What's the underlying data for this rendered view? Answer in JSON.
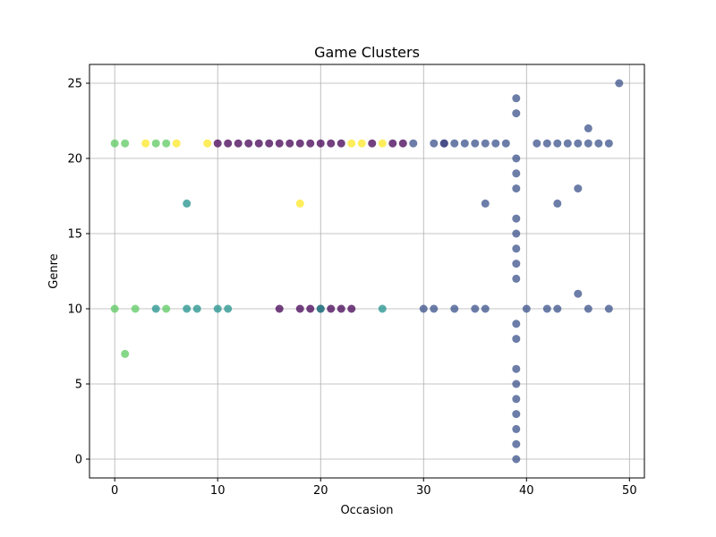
{
  "chart_data": {
    "type": "scatter",
    "title": "Game Clusters",
    "xlabel": "Occasion",
    "ylabel": "Genre",
    "xlim": [
      -2.45,
      51.45
    ],
    "ylim": [
      -1.25,
      26.25
    ],
    "xticks": [
      0,
      10,
      20,
      30,
      40,
      50
    ],
    "yticks": [
      0,
      5,
      10,
      15,
      20,
      25
    ],
    "grid": true,
    "legend": "none",
    "colormap": "viridis",
    "point_opacity": 0.75,
    "series": [
      {
        "cluster_color": "#440154",
        "points": [
          [
            10,
            21
          ],
          [
            11,
            21
          ],
          [
            12,
            21
          ],
          [
            13,
            21
          ],
          [
            14,
            21
          ],
          [
            15,
            21
          ],
          [
            16,
            21
          ],
          [
            17,
            21
          ],
          [
            18,
            21
          ],
          [
            19,
            21
          ],
          [
            20,
            21
          ],
          [
            21,
            21
          ],
          [
            22,
            21
          ],
          [
            25,
            21
          ],
          [
            27,
            21
          ],
          [
            28,
            21
          ],
          [
            32,
            21
          ],
          [
            16,
            10
          ],
          [
            18,
            10
          ],
          [
            19,
            10
          ],
          [
            20,
            10
          ],
          [
            21,
            10
          ],
          [
            22,
            10
          ],
          [
            23,
            10
          ]
        ]
      },
      {
        "cluster_color": "#3b528b",
        "points": [
          [
            29,
            21
          ],
          [
            31,
            21
          ],
          [
            32,
            21
          ],
          [
            33,
            21
          ],
          [
            34,
            21
          ],
          [
            35,
            21
          ],
          [
            36,
            21
          ],
          [
            37,
            21
          ],
          [
            38,
            21
          ],
          [
            41,
            21
          ],
          [
            42,
            21
          ],
          [
            43,
            21
          ],
          [
            44,
            21
          ],
          [
            45,
            21
          ],
          [
            46,
            21
          ],
          [
            47,
            21
          ],
          [
            48,
            21
          ],
          [
            46,
            22
          ],
          [
            49,
            25
          ],
          [
            30,
            10
          ],
          [
            31,
            10
          ],
          [
            33,
            10
          ],
          [
            35,
            10
          ],
          [
            36,
            10
          ],
          [
            40,
            10
          ],
          [
            42,
            10
          ],
          [
            43,
            10
          ],
          [
            46,
            10
          ],
          [
            48,
            10
          ],
          [
            45,
            11
          ],
          [
            36,
            17
          ],
          [
            43,
            17
          ],
          [
            45,
            18
          ],
          [
            39,
            0
          ],
          [
            39,
            1
          ],
          [
            39,
            2
          ],
          [
            39,
            3
          ],
          [
            39,
            4
          ],
          [
            39,
            5
          ],
          [
            39,
            6
          ],
          [
            39,
            8
          ],
          [
            39,
            9
          ],
          [
            39,
            12
          ],
          [
            39,
            13
          ],
          [
            39,
            14
          ],
          [
            39,
            15
          ],
          [
            39,
            16
          ],
          [
            39,
            18
          ],
          [
            39,
            19
          ],
          [
            39,
            20
          ],
          [
            39,
            23
          ],
          [
            39,
            24
          ]
        ]
      },
      {
        "cluster_color": "#21918c",
        "points": [
          [
            4,
            10
          ],
          [
            7,
            10
          ],
          [
            8,
            10
          ],
          [
            10,
            10
          ],
          [
            11,
            10
          ],
          [
            20,
            10
          ],
          [
            26,
            10
          ],
          [
            7,
            17
          ]
        ]
      },
      {
        "cluster_color": "#5ec962",
        "points": [
          [
            0,
            21
          ],
          [
            1,
            21
          ],
          [
            4,
            21
          ],
          [
            5,
            21
          ],
          [
            0,
            10
          ],
          [
            2,
            10
          ],
          [
            5,
            10
          ],
          [
            1,
            7
          ]
        ]
      },
      {
        "cluster_color": "#fde725",
        "points": [
          [
            3,
            21
          ],
          [
            6,
            21
          ],
          [
            9,
            21
          ],
          [
            23,
            21
          ],
          [
            24,
            21
          ],
          [
            26,
            21
          ],
          [
            18,
            17
          ]
        ]
      }
    ]
  }
}
